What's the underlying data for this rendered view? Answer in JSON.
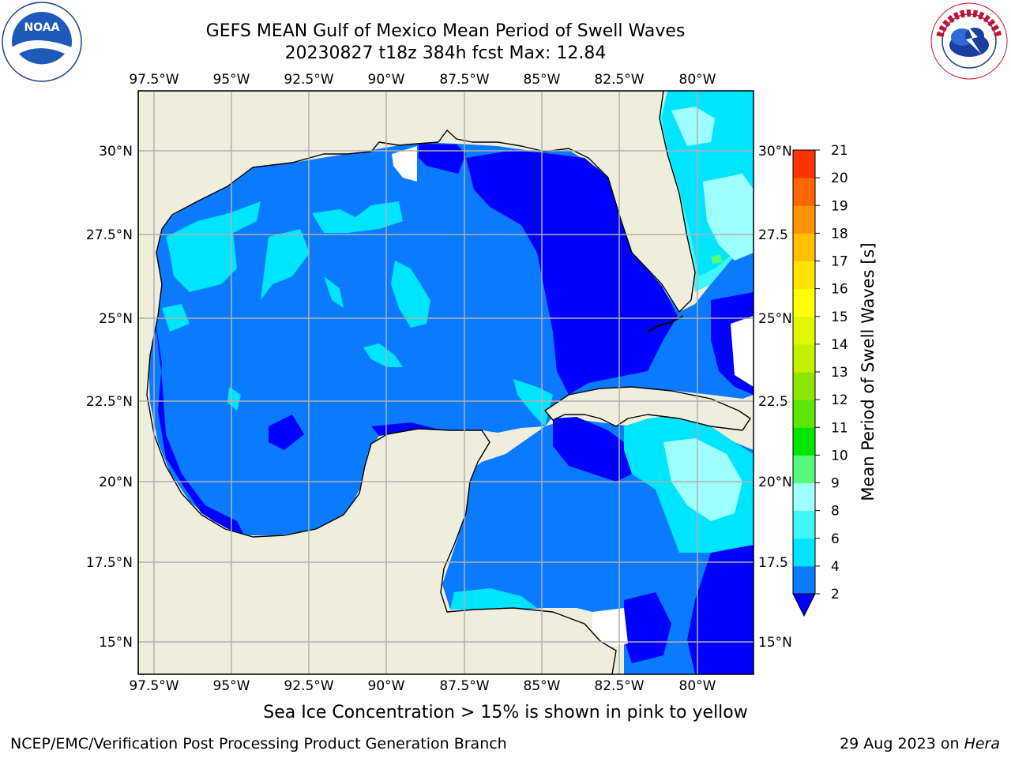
{
  "header": {
    "title_line1": "GEFS MEAN Gulf of Mexico Mean Period of Swell Waves",
    "title_line2": "20230827 t18z 384h fcst   Max: 12.84"
  },
  "logos": {
    "left": {
      "icon": "noaa-logo-icon",
      "text": "NOAA"
    },
    "right": {
      "icon": "nws-logo-icon",
      "text": "NATIONAL WEATHER SERVICE"
    }
  },
  "map": {
    "lon_labels": [
      "97.5°W",
      "95°W",
      "92.5°W",
      "90°W",
      "87.5°W",
      "85°W",
      "82.5°W",
      "80°W"
    ],
    "lat_labels": [
      "30°N",
      "27.5°N",
      "25°N",
      "22.5°N",
      "20°N",
      "17.5°N",
      "15°N"
    ],
    "lat_labels_right": [
      "30°N",
      "27.5",
      "25°N",
      "22.5",
      "20°N",
      "17.5",
      "15°N"
    ],
    "colors": {
      "land": "#efeedc",
      "coast": "#000000",
      "grid": "#b0b0b0"
    }
  },
  "colorbar": {
    "label": "Mean Period of Swell Waves [s]",
    "ticks": [
      "2",
      "4",
      "6",
      "8",
      "9",
      "10",
      "11",
      "12",
      "13",
      "14",
      "15",
      "16",
      "17",
      "18",
      "19",
      "20",
      "21"
    ],
    "colors": [
      "#0a7bff",
      "#00e5ff",
      "#3ff5f5",
      "#9effff",
      "#56f97a",
      "#00e600",
      "#5ce600",
      "#8ee600",
      "#c3f000",
      "#e2f600",
      "#ffff00",
      "#ffe400",
      "#ffc000",
      "#ff9400",
      "#ff6600",
      "#ff3300",
      "#ff0000"
    ],
    "under_color": "#0000ff"
  },
  "footer": {
    "note": "Sea Ice Concentration > 15% is shown in pink to yellow",
    "credit_left": "NCEP/EMC/Verification Post Processing Product Generation Branch",
    "credit_date": "29 Aug 2023 on",
    "credit_host": "Hera"
  }
}
